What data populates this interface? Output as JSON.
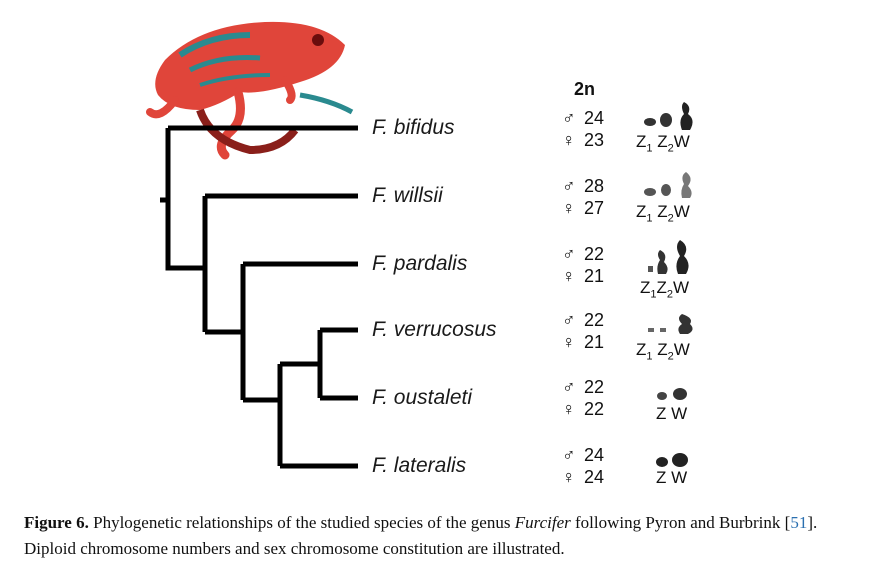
{
  "header_2n": "2n",
  "species": [
    {
      "name": "F. bifidus",
      "male": "24",
      "female": "23",
      "sex_chr": [
        "Z",
        "1",
        "Z",
        "2",
        "W"
      ]
    },
    {
      "name": "F. willsii",
      "male": "28",
      "female": "27",
      "sex_chr": [
        "Z",
        "1",
        "Z",
        "2",
        "W"
      ]
    },
    {
      "name": "F. pardalis",
      "male": "22",
      "female": "21",
      "sex_chr": [
        "Z",
        "1",
        "Z",
        "2",
        "W"
      ]
    },
    {
      "name": "F. verrucosus",
      "male": "22",
      "female": "21",
      "sex_chr": [
        "Z",
        "1",
        "Z",
        "2",
        "W"
      ]
    },
    {
      "name": "F. oustaleti",
      "male": "22",
      "female": "22",
      "sex_chr": [
        "Z",
        "",
        "",
        "",
        "W"
      ]
    },
    {
      "name": "F. lateralis",
      "male": "24",
      "female": "24",
      "sex_chr": [
        "Z",
        "",
        "",
        "",
        "W"
      ]
    }
  ],
  "symbols": {
    "male": "♂",
    "female": "♀"
  },
  "caption": {
    "label": "Figure 6.",
    "part1": " Phylogenetic relationships of the studied species of the genus ",
    "genus": "Furcifer",
    "part2": " following Pyron and Burbrink [",
    "ref": "51",
    "part3": "]. Diploid chromosome numbers and sex chromosome constitution are illustrated."
  },
  "colors": {
    "tree": "#000000",
    "chameleon": "#e0453a",
    "chameleon_dark": "#2a8a8f",
    "ref": "#2a6fb0"
  }
}
